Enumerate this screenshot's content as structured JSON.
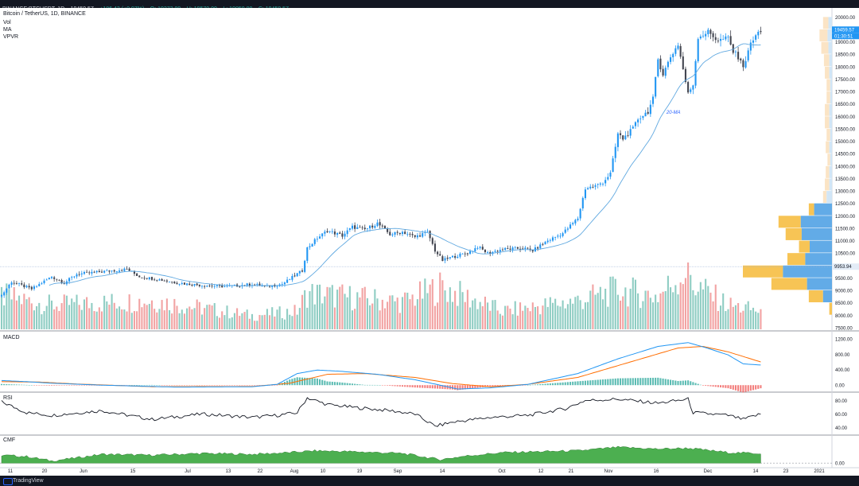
{
  "header": {
    "symbol": "BINANCE:BTCUSDT, 1D",
    "last": "19459.57",
    "change": "+186.43 (+0.97%)",
    "o": "O: 19273.09",
    "h": "H: 19570.00",
    "l": "L: 19050.00",
    "c": "C: 19459.57",
    "title": "Bitcoin / TetherUS, 1D, BINANCE",
    "ind1": "Vol",
    "ind2": "MA",
    "ind3": "VPVR"
  },
  "footer": {
    "brand": "TradingView"
  },
  "chart_data": [
    {
      "type": "line",
      "pane": "price",
      "ylim": [
        7400,
        20300
      ],
      "yticks": [
        7500,
        8000,
        8500,
        9000,
        9500,
        10000,
        10500,
        11000,
        11500,
        12000,
        12500,
        13000,
        13500,
        14000,
        14500,
        15000,
        15500,
        16000,
        16500,
        17000,
        17500,
        18000,
        18500,
        19000,
        19500,
        20000
      ],
      "ytick_labels": [
        "7500.00",
        "8000.00",
        "8500.00",
        "9000.00",
        "9500.00",
        "10000.00",
        "10500.00",
        "11000.00",
        "11500.00",
        "12000.00",
        "12500.00",
        "13000.00",
        "13500.00",
        "14000.00",
        "14500.00",
        "15000.00",
        "15500.00",
        "16000.00",
        "16500.00",
        "17000.00",
        "17500.00",
        "18000.00",
        "18500.00",
        "19000.00",
        "19500.00",
        "20000.00"
      ],
      "xticks": [
        "11",
        "20",
        "Jun",
        "15",
        "Jul",
        "13",
        "22",
        "Aug",
        "10",
        "19",
        "Sep",
        "14",
        "Oct",
        "12",
        "21",
        "Nov",
        "16",
        "Dec",
        "14",
        "23",
        "2021"
      ],
      "price_anchors": [
        [
          0,
          8800
        ],
        [
          4,
          9350
        ],
        [
          8,
          9200
        ],
        [
          12,
          9050
        ],
        [
          20,
          9550
        ],
        [
          25,
          9300
        ],
        [
          30,
          9650
        ],
        [
          40,
          9750
        ],
        [
          50,
          9850
        ],
        [
          55,
          9550
        ],
        [
          62,
          9450
        ],
        [
          70,
          9300
        ],
        [
          80,
          9200
        ],
        [
          90,
          9150
        ],
        [
          100,
          9250
        ],
        [
          105,
          9150
        ],
        [
          112,
          9250
        ],
        [
          115,
          9450
        ],
        [
          120,
          9800
        ],
        [
          122,
          10700
        ],
        [
          126,
          11100
        ],
        [
          130,
          11400
        ],
        [
          136,
          11200
        ],
        [
          140,
          11550
        ],
        [
          145,
          11450
        ],
        [
          150,
          11700
        ],
        [
          155,
          11250
        ],
        [
          160,
          11350
        ],
        [
          165,
          11150
        ],
        [
          170,
          11350
        ],
        [
          173,
          10600
        ],
        [
          176,
          10200
        ],
        [
          180,
          10350
        ],
        [
          186,
          10500
        ],
        [
          190,
          10750
        ],
        [
          194,
          10500
        ],
        [
          200,
          10650
        ],
        [
          208,
          10700
        ],
        [
          212,
          10600
        ],
        [
          218,
          11000
        ],
        [
          224,
          11300
        ],
        [
          230,
          11900
        ],
        [
          233,
          13100
        ],
        [
          237,
          13200
        ],
        [
          240,
          13350
        ],
        [
          243,
          13700
        ],
        [
          246,
          15300
        ],
        [
          248,
          15100
        ],
        [
          252,
          15500
        ],
        [
          254,
          15900
        ],
        [
          258,
          16200
        ],
        [
          260,
          16700
        ],
        [
          262,
          18300
        ],
        [
          264,
          17700
        ],
        [
          267,
          18400
        ],
        [
          270,
          18900
        ],
        [
          274,
          16900
        ],
        [
          276,
          17300
        ],
        [
          278,
          19200
        ],
        [
          282,
          19400
        ],
        [
          286,
          19050
        ],
        [
          290,
          19150
        ],
        [
          292,
          18600
        ],
        [
          295,
          18300
        ],
        [
          296,
          17900
        ],
        [
          298,
          18700
        ],
        [
          301,
          19250
        ],
        [
          303,
          19459.57
        ]
      ],
      "ma20_label": "20-MA",
      "last_price_label": "19459.57",
      "countdown_label": "01:30:51",
      "horizontal_line_label": "9953.94",
      "horizontal_line_value": 9953.94,
      "vpvr": [
        [
          8000,
          3,
          0
        ],
        [
          8500,
          16,
          10
        ],
        [
          9000,
          40,
          28
        ],
        [
          9500,
          45,
          55
        ],
        [
          10000,
          20,
          30
        ],
        [
          10500,
          12,
          25
        ],
        [
          11000,
          18,
          34
        ],
        [
          11500,
          25,
          35
        ],
        [
          12000,
          6,
          20
        ],
        [
          12500,
          4,
          6
        ],
        [
          13000,
          5,
          3
        ],
        [
          13500,
          4,
          3
        ],
        [
          14000,
          3,
          2
        ],
        [
          14500,
          4,
          3
        ],
        [
          15000,
          4,
          2
        ],
        [
          15500,
          5,
          3
        ],
        [
          16000,
          5,
          3
        ],
        [
          16500,
          4,
          2
        ],
        [
          17000,
          4,
          2
        ],
        [
          17500,
          5,
          3
        ],
        [
          18000,
          6,
          3
        ],
        [
          18500,
          8,
          4
        ],
        [
          19000,
          9,
          5
        ],
        [
          19500,
          6,
          4
        ]
      ]
    },
    {
      "type": "bar",
      "pane": "volume",
      "anchors": [
        [
          0,
          110
        ],
        [
          20,
          80
        ],
        [
          60,
          95
        ],
        [
          100,
          45
        ],
        [
          118,
          60
        ],
        [
          122,
          120
        ],
        [
          160,
          90
        ],
        [
          175,
          140
        ],
        [
          200,
          60
        ],
        [
          230,
          95
        ],
        [
          246,
          130
        ],
        [
          262,
          110
        ],
        [
          274,
          200
        ],
        [
          276,
          150
        ],
        [
          290,
          80
        ],
        [
          303,
          60
        ]
      ],
      "up_color": "#8fcdc3",
      "down_color": "#f2a3a3"
    },
    {
      "type": "line",
      "pane": "macd",
      "title": "MACD",
      "yticks": [
        0,
        400,
        800,
        1200
      ],
      "ytick_labels": [
        "0.00",
        "400.00",
        "800.00",
        "1200.00"
      ],
      "ylim": [
        -160,
        1360
      ],
      "macd_anchors": [
        [
          0,
          120
        ],
        [
          10,
          90
        ],
        [
          20,
          50
        ],
        [
          40,
          0
        ],
        [
          70,
          -50
        ],
        [
          100,
          -40
        ],
        [
          110,
          20
        ],
        [
          118,
          300
        ],
        [
          126,
          390
        ],
        [
          135,
          360
        ],
        [
          150,
          280
        ],
        [
          165,
          140
        ],
        [
          175,
          0
        ],
        [
          182,
          -100
        ],
        [
          195,
          -70
        ],
        [
          210,
          20
        ],
        [
          230,
          300
        ],
        [
          246,
          680
        ],
        [
          262,
          1000
        ],
        [
          274,
          1100
        ],
        [
          282,
          950
        ],
        [
          290,
          780
        ],
        [
          296,
          550
        ],
        [
          303,
          520
        ]
      ],
      "signal_anchors": [
        [
          0,
          90
        ],
        [
          15,
          80
        ],
        [
          30,
          30
        ],
        [
          60,
          -40
        ],
        [
          100,
          -35
        ],
        [
          115,
          50
        ],
        [
          130,
          280
        ],
        [
          145,
          300
        ],
        [
          165,
          200
        ],
        [
          180,
          40
        ],
        [
          195,
          -40
        ],
        [
          210,
          20
        ],
        [
          230,
          200
        ],
        [
          250,
          580
        ],
        [
          270,
          960
        ],
        [
          280,
          1000
        ],
        [
          290,
          860
        ],
        [
          303,
          600
        ]
      ]
    },
    {
      "type": "line",
      "pane": "rsi",
      "title": "RSI",
      "yticks": [
        40,
        60,
        80
      ],
      "ytick_labels": [
        "40.00",
        "60.00",
        "80.00"
      ],
      "ylim": [
        30,
        90
      ],
      "anchors": [
        [
          0,
          78
        ],
        [
          10,
          62
        ],
        [
          20,
          58
        ],
        [
          40,
          65
        ],
        [
          60,
          52
        ],
        [
          80,
          60
        ],
        [
          100,
          55
        ],
        [
          110,
          58
        ],
        [
          118,
          62
        ],
        [
          122,
          84
        ],
        [
          130,
          74
        ],
        [
          140,
          70
        ],
        [
          155,
          65
        ],
        [
          165,
          60
        ],
        [
          173,
          42
        ],
        [
          180,
          48
        ],
        [
          195,
          55
        ],
        [
          210,
          58
        ],
        [
          225,
          68
        ],
        [
          233,
          80
        ],
        [
          246,
          82
        ],
        [
          262,
          76
        ],
        [
          274,
          82
        ],
        [
          276,
          62
        ],
        [
          290,
          58
        ],
        [
          296,
          52
        ],
        [
          303,
          60
        ]
      ]
    },
    {
      "type": "area",
      "pane": "cmf",
      "title": "CMF",
      "yticks": [
        0
      ],
      "ytick_labels": [
        "0.00"
      ],
      "ylim": [
        -0.05,
        0.6
      ],
      "anchors": [
        [
          0,
          0.18
        ],
        [
          10,
          0.15
        ],
        [
          20,
          0.05
        ],
        [
          30,
          0.12
        ],
        [
          40,
          0.2
        ],
        [
          60,
          0.18
        ],
        [
          80,
          0.22
        ],
        [
          100,
          0.2
        ],
        [
          115,
          0.24
        ],
        [
          125,
          0.28
        ],
        [
          140,
          0.26
        ],
        [
          160,
          0.22
        ],
        [
          175,
          0.08
        ],
        [
          185,
          0.16
        ],
        [
          200,
          0.24
        ],
        [
          215,
          0.26
        ],
        [
          230,
          0.28
        ],
        [
          246,
          0.36
        ],
        [
          262,
          0.32
        ],
        [
          274,
          0.34
        ],
        [
          290,
          0.24
        ],
        [
          303,
          0.22
        ]
      ]
    }
  ]
}
